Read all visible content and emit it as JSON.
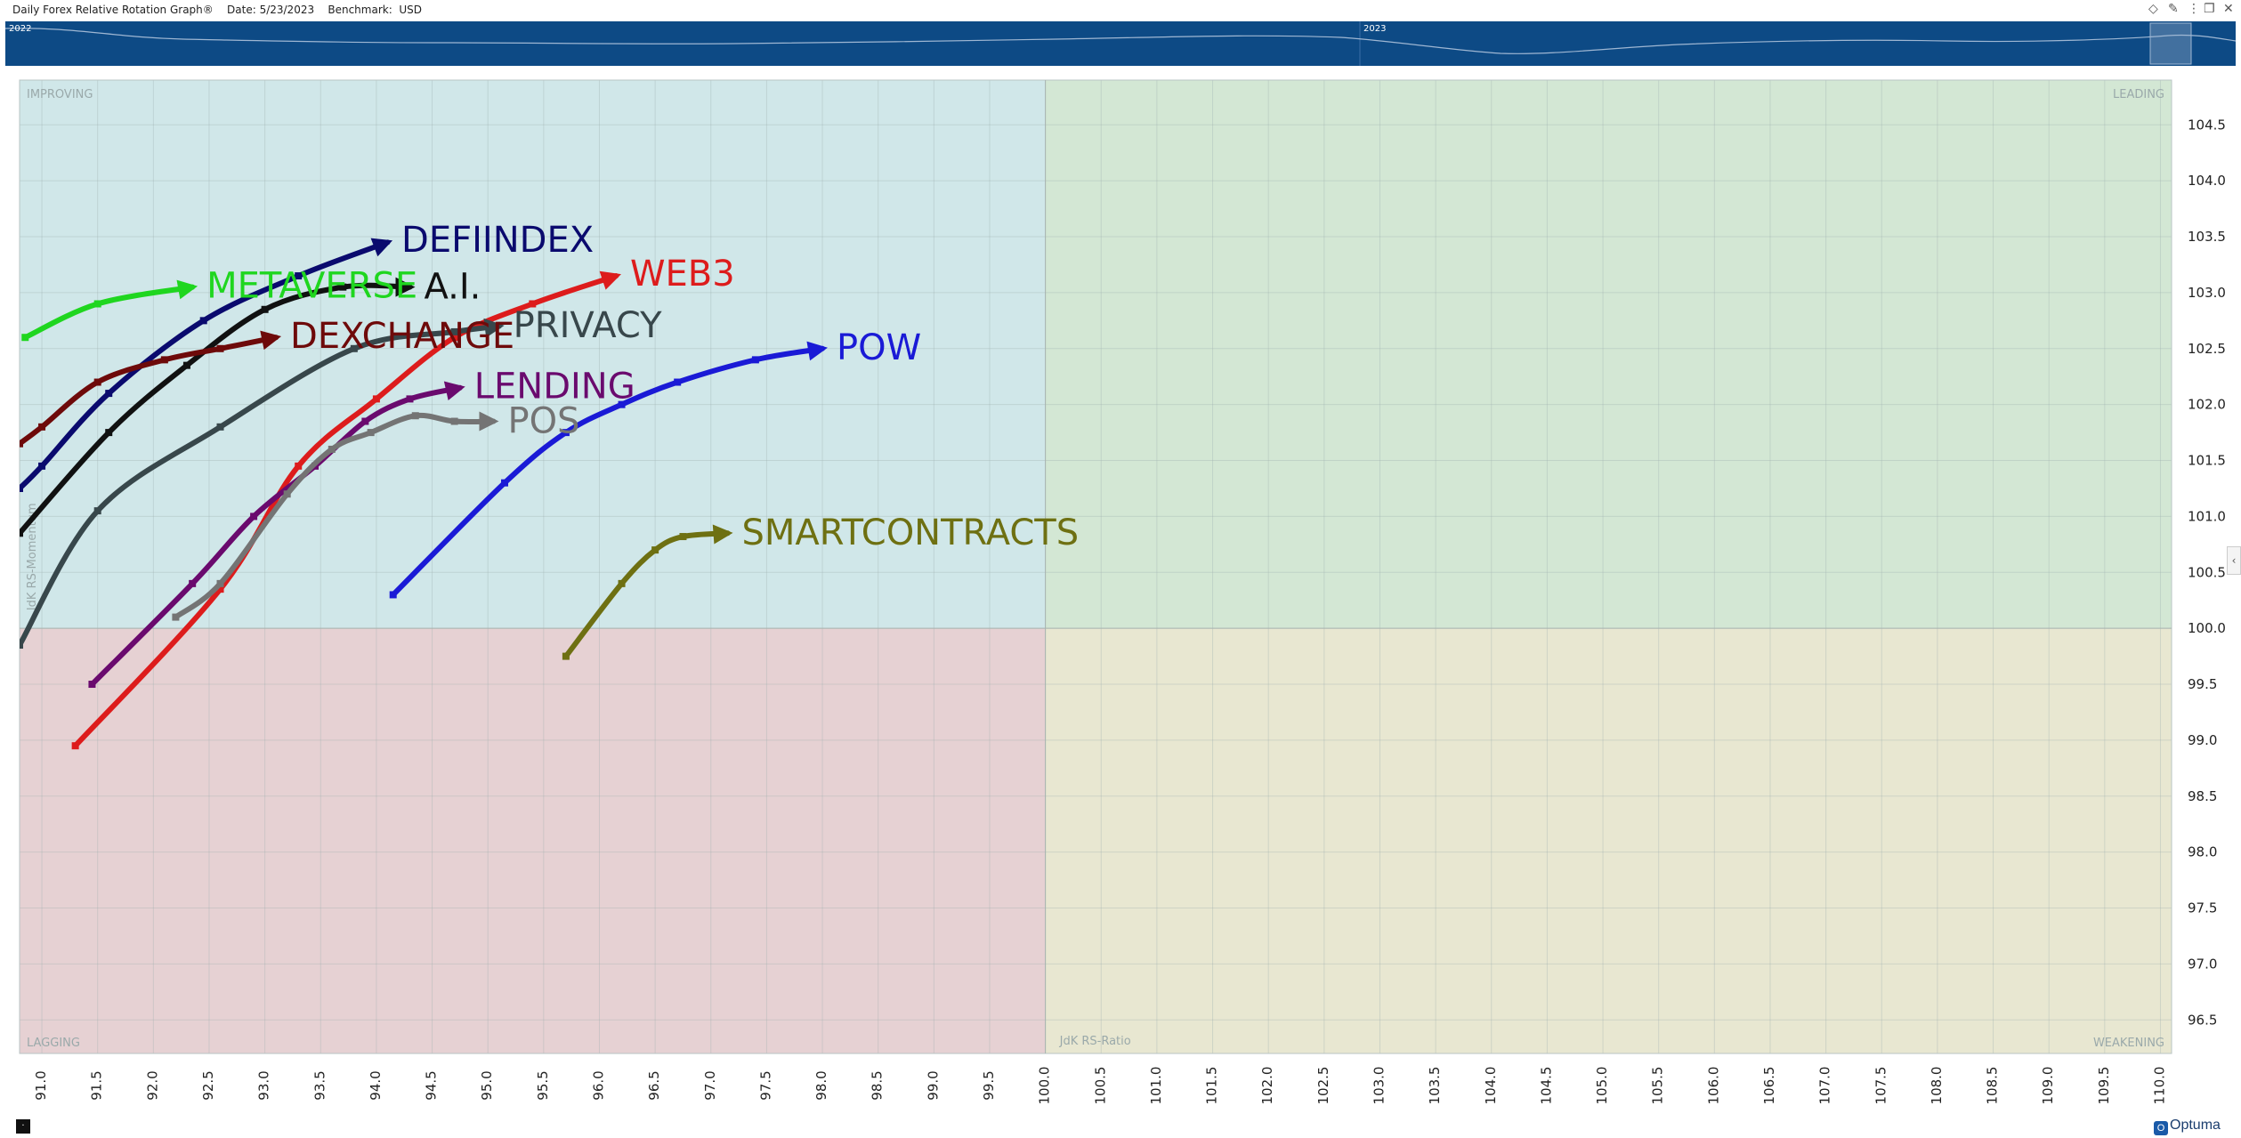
{
  "window": {
    "title": "Daily Forex Relative Rotation Graph®    Date: 5/23/2023    Benchmark:  USD",
    "icons": [
      "diamond-icon",
      "pin-icon",
      "more-icon",
      "restore-icon",
      "close-icon"
    ]
  },
  "navigator": {
    "year_labels": [
      "2022",
      "2023"
    ],
    "color": "#0d4a85"
  },
  "quadrants": {
    "improving": "IMPROVING",
    "leading": "LEADING",
    "lagging": "LAGGING",
    "weakening": "WEAKENING",
    "colors": {
      "improving": "#d0e7e9",
      "leading": "#d3e7d4",
      "lagging": "#e6d1d3",
      "weakening": "#e8e7d1"
    }
  },
  "chart_data": {
    "type": "scatter",
    "xlabel": "JdK RS-Ratio",
    "ylabel": "JdK RS-Momentum",
    "xlim": [
      90.8,
      110.1
    ],
    "ylim": [
      96.2,
      104.9
    ],
    "center": [
      100.0,
      100.0
    ],
    "x_ticks": [
      "91.0",
      "91.5",
      "92.0",
      "92.5",
      "93.0",
      "93.5",
      "94.0",
      "94.5",
      "95.0",
      "95.5",
      "96.0",
      "96.5",
      "97.0",
      "97.5",
      "98.0",
      "98.5",
      "99.0",
      "99.5",
      "100.0",
      "100.5",
      "101.0",
      "101.5",
      "102.0",
      "102.5",
      "103.0",
      "103.5",
      "104.0",
      "104.5",
      "105.0",
      "105.5",
      "106.0",
      "106.5",
      "107.0",
      "107.5",
      "108.0",
      "108.5",
      "109.0",
      "109.5",
      "110.0"
    ],
    "y_ticks": [
      "96.5",
      "97.0",
      "97.5",
      "98.0",
      "98.5",
      "99.0",
      "99.5",
      "100.0",
      "100.5",
      "101.0",
      "101.5",
      "102.0",
      "102.5",
      "103.0",
      "103.5",
      "104.0",
      "104.5"
    ],
    "series": [
      {
        "name": "DEFIINDEX",
        "color": "#0a0a6e",
        "x": [
          90.8,
          91.0,
          91.6,
          92.45,
          93.3,
          94.1
        ],
        "y": [
          101.25,
          101.45,
          102.1,
          102.75,
          103.15,
          103.45
        ]
      },
      {
        "name": "METAVERSE",
        "color": "#1fd61f",
        "x": [
          90.85,
          91.5,
          92.35
        ],
        "y": [
          102.6,
          102.9,
          103.05
        ]
      },
      {
        "name": "A.I.",
        "color": "#111111",
        "x": [
          90.8,
          91.6,
          92.3,
          93.0,
          93.7,
          94.3
        ],
        "y": [
          100.85,
          101.75,
          102.35,
          102.85,
          103.05,
          103.05
        ]
      },
      {
        "name": "WEB3",
        "color": "#dd1c1c",
        "x": [
          91.3,
          92.6,
          93.3,
          94.0,
          94.7,
          95.4,
          96.15
        ],
        "y": [
          98.95,
          100.35,
          101.45,
          102.05,
          102.6,
          102.9,
          103.15
        ]
      },
      {
        "name": "DEXCHANGE",
        "color": "#6e0a0a",
        "x": [
          90.8,
          91.0,
          91.5,
          92.1,
          92.6,
          93.1
        ],
        "y": [
          101.65,
          101.8,
          102.2,
          102.4,
          102.5,
          102.6
        ]
      },
      {
        "name": "PRIVACY",
        "color": "#38474b",
        "x": [
          90.8,
          91.5,
          92.6,
          93.8,
          94.7,
          95.1
        ],
        "y": [
          99.85,
          101.05,
          101.8,
          102.5,
          102.65,
          102.7
        ]
      },
      {
        "name": "POW",
        "color": "#1a1ad6",
        "x": [
          94.15,
          95.15,
          95.7,
          96.2,
          96.7,
          97.4,
          98.0
        ],
        "y": [
          100.3,
          101.3,
          101.75,
          102.0,
          102.2,
          102.4,
          102.5
        ]
      },
      {
        "name": "LENDING",
        "color": "#6a0a6e",
        "x": [
          91.45,
          92.35,
          92.9,
          93.45,
          93.9,
          94.3,
          94.75
        ],
        "y": [
          99.5,
          100.4,
          101.0,
          101.45,
          101.85,
          102.05,
          102.15
        ]
      },
      {
        "name": "POS",
        "color": "#747474",
        "x": [
          92.2,
          92.6,
          93.2,
          93.6,
          93.95,
          94.35,
          94.7,
          95.05
        ],
        "y": [
          100.1,
          100.4,
          101.2,
          101.6,
          101.75,
          101.9,
          101.85,
          101.85
        ]
      },
      {
        "name": "SMARTCONTRACTS",
        "color": "#6e7012",
        "x": [
          95.7,
          96.2,
          96.5,
          96.75,
          97.15
        ],
        "y": [
          99.75,
          100.4,
          100.7,
          100.82,
          100.85
        ]
      }
    ]
  }
}
